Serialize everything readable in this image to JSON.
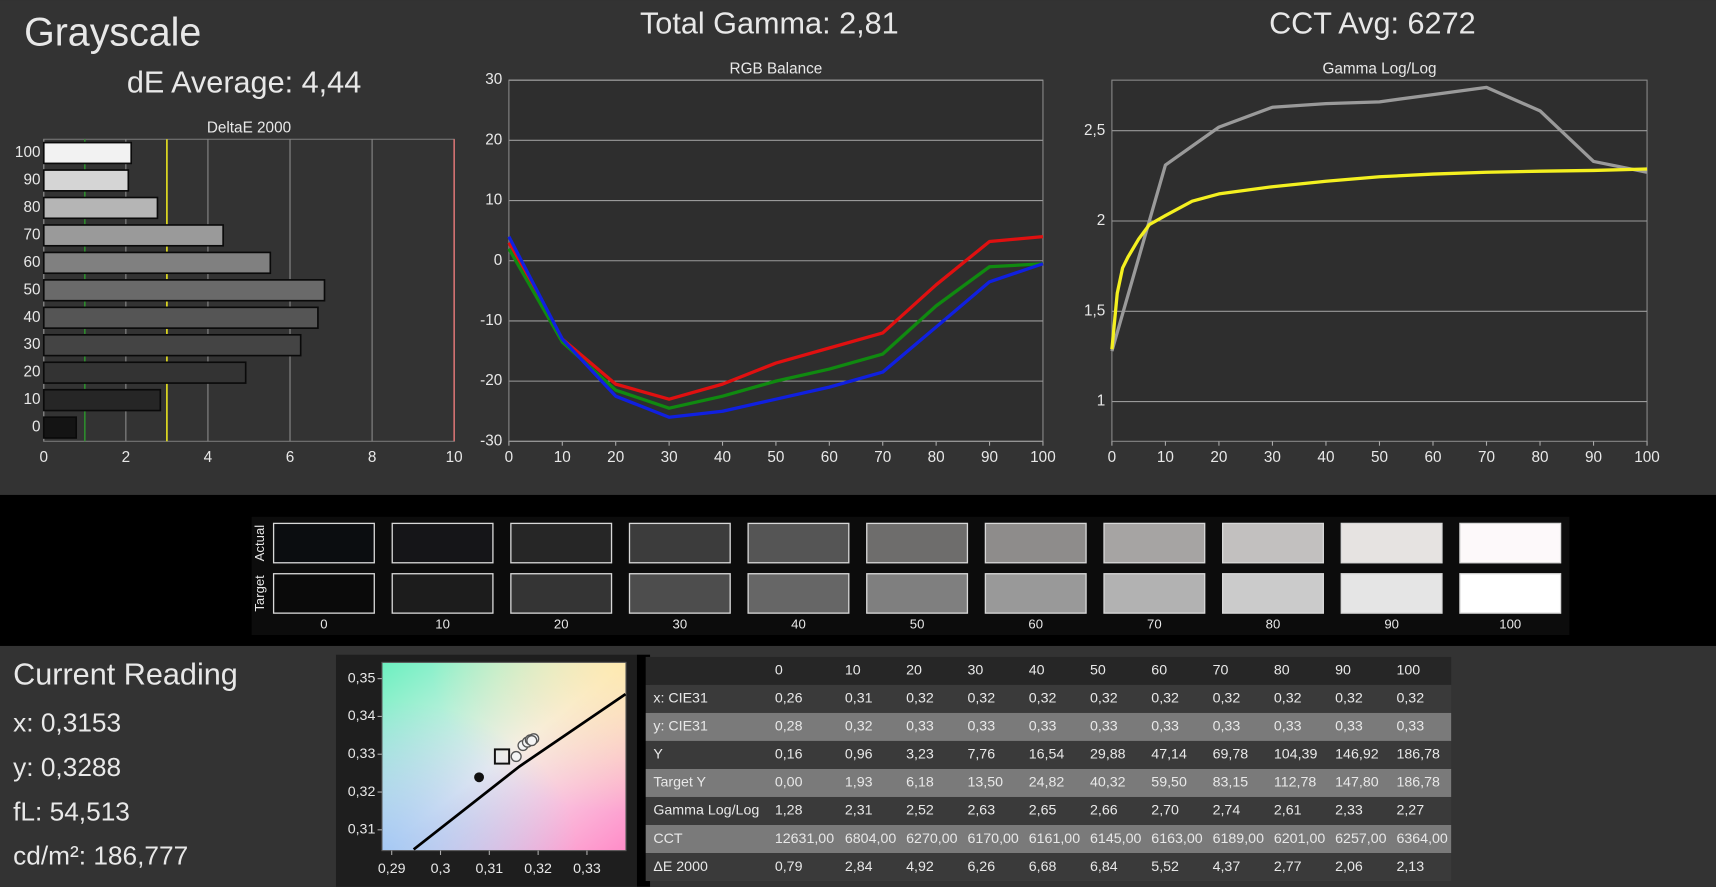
{
  "header": {
    "title": "Grayscale",
    "total_gamma": "Total Gamma: 2,81",
    "cct_avg": "CCT Avg: 6272",
    "de_average": "dE Average: 4,44"
  },
  "chart_data": [
    {
      "type": "hbar",
      "title": "DeltaE 2000",
      "categories": [
        "0",
        "10",
        "20",
        "30",
        "40",
        "50",
        "60",
        "70",
        "80",
        "90",
        "100"
      ],
      "values": [
        0.79,
        2.84,
        4.92,
        6.26,
        6.68,
        6.84,
        5.52,
        4.37,
        2.77,
        2.06,
        2.13
      ],
      "colors": [
        "#141414",
        "#262626",
        "#333333",
        "#444444",
        "#555555",
        "#6a6a6a",
        "#808080",
        "#9a9a9a",
        "#b5b5b5",
        "#d5d5d5",
        "#f2f2f2"
      ],
      "xlim": [
        0,
        10
      ],
      "xticks": [
        0,
        2,
        4,
        6,
        8,
        10
      ],
      "grid": true,
      "reference_lines": [
        {
          "value": 1,
          "color": "#2d8a2d"
        },
        {
          "value": 3,
          "color": "#e6e020"
        },
        {
          "value": 10,
          "color": "#d07070"
        }
      ]
    },
    {
      "type": "line",
      "title": "RGB Balance",
      "x": [
        0,
        10,
        20,
        30,
        40,
        50,
        60,
        70,
        80,
        90,
        100
      ],
      "xlim": [
        0,
        100
      ],
      "xticks": [
        0,
        10,
        20,
        30,
        40,
        50,
        60,
        70,
        80,
        90,
        100
      ],
      "ylim": [
        -30,
        30
      ],
      "yticks": [
        -30,
        -20,
        -10,
        0,
        10,
        20,
        30
      ],
      "grid": true,
      "series": [
        {
          "color": "#e01010",
          "values": [
            3,
            -13,
            -20.5,
            -23,
            -20.5,
            -17,
            -14.5,
            -12,
            -4,
            3.2,
            4
          ]
        },
        {
          "color": "#108a10",
          "values": [
            2,
            -13.5,
            -21.5,
            -24.5,
            -22.5,
            -20,
            -18,
            -15.5,
            -7.5,
            -1,
            -0.5
          ]
        },
        {
          "color": "#1020e0",
          "values": [
            4,
            -13,
            -22.5,
            -26,
            -25,
            -23,
            -21,
            -18.5,
            -11,
            -3.5,
            -0.5
          ]
        }
      ]
    },
    {
      "type": "line",
      "title": "Gamma Log/Log",
      "xlim": [
        0,
        100
      ],
      "xticks": [
        0,
        10,
        20,
        30,
        40,
        50,
        60,
        70,
        80,
        90,
        100
      ],
      "ylim": [
        0.78,
        2.78
      ],
      "yticks": [
        1,
        {
          "value": 1.5,
          "label": "1,5"
        },
        2,
        {
          "value": 2.5,
          "label": "2,5"
        }
      ],
      "grid": true,
      "series": [
        {
          "color": "#9a9a9a",
          "x": [
            0,
            10,
            20,
            30,
            40,
            50,
            60,
            70,
            80,
            90,
            100
          ],
          "values": [
            1.28,
            2.31,
            2.52,
            2.63,
            2.65,
            2.66,
            2.7,
            2.74,
            2.61,
            2.33,
            2.27
          ]
        },
        {
          "color": "#f4f020",
          "x": [
            0,
            1,
            2,
            3,
            5,
            7,
            10,
            15,
            20,
            30,
            40,
            50,
            60,
            70,
            80,
            90,
            100
          ],
          "values": [
            1.29,
            1.6,
            1.74,
            1.8,
            1.9,
            1.98,
            2.03,
            2.11,
            2.15,
            2.19,
            2.22,
            2.245,
            2.26,
            2.27,
            2.276,
            2.28,
            2.288
          ]
        }
      ]
    },
    {
      "type": "scatter",
      "xlim": [
        0.288,
        0.338
      ],
      "xticks": [
        {
          "value": 0.29,
          "label": "0,29"
        },
        {
          "value": 0.3,
          "label": "0,3"
        },
        {
          "value": 0.31,
          "label": "0,31"
        },
        {
          "value": 0.32,
          "label": "0,32"
        },
        {
          "value": 0.33,
          "label": "0,33"
        }
      ],
      "ylim": [
        0.3045,
        0.3543
      ],
      "yticks": [
        {
          "value": 0.31,
          "label": "0,31"
        },
        {
          "value": 0.32,
          "label": "0,32"
        },
        {
          "value": 0.33,
          "label": "0,33"
        },
        {
          "value": 0.34,
          "label": "0,34"
        },
        {
          "value": 0.35,
          "label": "0,35"
        }
      ],
      "locus": {
        "color": "#000000",
        "x": [
          0.2945,
          0.3162,
          0.3379
        ],
        "values": [
          0.3048,
          0.3268,
          0.3459
        ]
      },
      "series": [
        {
          "marker": "dot",
          "color": "#111111",
          "x": [
            0.3079
          ],
          "values": [
            0.3239
          ]
        },
        {
          "marker": "square",
          "color": "#111111",
          "x": [
            0.3126
          ],
          "values": [
            0.3294
          ]
        },
        {
          "marker": "circle",
          "color": "#555555",
          "x": [
            0.3155,
            0.3169,
            0.3178,
            0.3184,
            0.3191,
            0.3187
          ],
          "values": [
            0.3294,
            0.3323,
            0.3332,
            0.3338,
            0.3341,
            0.3336
          ]
        }
      ]
    }
  ],
  "swatches": {
    "row_labels": [
      "Actual",
      "Target"
    ],
    "categories": [
      "0",
      "10",
      "20",
      "30",
      "40",
      "50",
      "60",
      "70",
      "80",
      "90",
      "100"
    ],
    "actual": [
      "#0b0d10",
      "#151518",
      "#262626",
      "#3c3c3c",
      "#555555",
      "#6e6d6c",
      "#8e8c8b",
      "#a6a4a3",
      "#c2c0bf",
      "#e6e3e1",
      "#fdf9fa"
    ],
    "target": [
      "#0a0a0a",
      "#1c1c1c",
      "#343434",
      "#4d4d4d",
      "#666666",
      "#7f7f7f",
      "#999999",
      "#b2b2b2",
      "#cbcbcb",
      "#e5e5e5",
      "#ffffff"
    ]
  },
  "current_reading": {
    "title": "Current Reading",
    "lines": [
      "x: 0,3153",
      "y: 0,3288",
      "fL: 54,513",
      "cd/m²: 186,777"
    ]
  },
  "table": {
    "columns": [
      "0",
      "10",
      "20",
      "30",
      "40",
      "50",
      "60",
      "70",
      "80",
      "90",
      "100"
    ],
    "rows": [
      [
        "x: CIE31",
        "0,26",
        "0,31",
        "0,32",
        "0,32",
        "0,32",
        "0,32",
        "0,32",
        "0,32",
        "0,32",
        "0,32",
        "0,32"
      ],
      [
        "y: CIE31",
        "0,28",
        "0,32",
        "0,33",
        "0,33",
        "0,33",
        "0,33",
        "0,33",
        "0,33",
        "0,33",
        "0,33",
        "0,33"
      ],
      [
        "Y",
        "0,16",
        "0,96",
        "3,23",
        "7,76",
        "16,54",
        "29,88",
        "47,14",
        "69,78",
        "104,39",
        "146,92",
        "186,78"
      ],
      [
        "Target Y",
        "0,00",
        "1,93",
        "6,18",
        "13,50",
        "24,82",
        "40,32",
        "59,50",
        "83,15",
        "112,78",
        "147,80",
        "186,78"
      ],
      [
        "Gamma Log/Log",
        "1,28",
        "2,31",
        "2,52",
        "2,63",
        "2,65",
        "2,66",
        "2,70",
        "2,74",
        "2,61",
        "2,33",
        "2,27"
      ],
      [
        "CCT",
        "12631,00",
        "6804,00",
        "6270,00",
        "6170,00",
        "6161,00",
        "6145,00",
        "6163,00",
        "6189,00",
        "6201,00",
        "6257,00",
        "6364,00"
      ],
      [
        "ΔE 2000",
        "0,79",
        "2,84",
        "4,92",
        "6,26",
        "6,68",
        "6,84",
        "5,52",
        "4,37",
        "2,77",
        "2,06",
        "2,13"
      ]
    ]
  }
}
